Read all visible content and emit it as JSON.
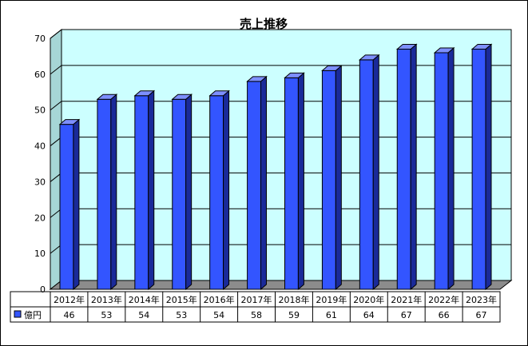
{
  "chart_data": {
    "type": "bar",
    "title": "売上推移",
    "categories": [
      "2012年",
      "2013年",
      "2014年",
      "2015年",
      "2016年",
      "2017年",
      "2018年",
      "2019年",
      "2020年",
      "2021年",
      "2022年",
      "2023年"
    ],
    "series": [
      {
        "name": "億円",
        "values": [
          46,
          53,
          54,
          53,
          54,
          58,
          59,
          61,
          64,
          67,
          66,
          67
        ]
      }
    ],
    "ylim": [
      0,
      70
    ],
    "yticks": [
      "0",
      "10",
      "20",
      "30",
      "40",
      "50",
      "60",
      "70"
    ],
    "grid": true,
    "legend": "data-table",
    "colors": {
      "bar": "#3355ff",
      "bar_side": "#1a2a99",
      "bar_top": "#7d8fff",
      "plot_bg": "#ccffff",
      "wall_side": "#a6d6d6",
      "floor": "#8c8c8c",
      "gridline": "#000000"
    }
  }
}
